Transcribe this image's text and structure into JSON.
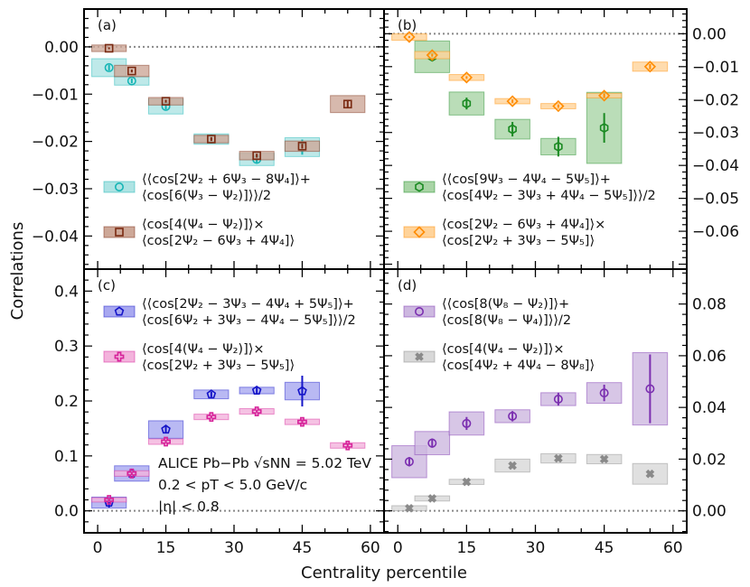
{
  "figure": {
    "xlabel": "Centrality percentile",
    "ylabel": "Correlations",
    "xticks": [
      "0",
      "15",
      "30",
      "45",
      "60"
    ],
    "xtick_values": [
      0,
      15,
      30,
      45,
      60
    ],
    "xlim": [
      -3,
      63
    ]
  },
  "annotation": {
    "line1": "ALICE Pb−Pb √sNN = 5.02 TeV",
    "line2": "0.2 < pT < 5.0 GeV/c",
    "line3": "|η| < 0.8"
  },
  "chart_data": [
    {
      "type": "scatter",
      "panel": "(a)",
      "ylim": [
        -0.047,
        0.008
      ],
      "yticks": [
        0,
        -0.01,
        -0.02,
        -0.03,
        -0.04
      ],
      "ytick_labels": [
        "0.00",
        "−0.01",
        "−0.02",
        "−0.03",
        "−0.04"
      ],
      "ytick_side": "left",
      "zero_line": true,
      "legend": "lower-left",
      "series": [
        {
          "name": "⟨⟨cos[2Ψ2 + 6Ψ3 − 8Ψ4]⟩ + ⟨cos[6(Ψ3 − Ψ2)]⟩⟩/2",
          "legend_lines": [
            "⟨⟨cos[2Ψ₂ + 6Ψ₃ − 8Ψ₄]⟩+",
            "⟨cos[6(Ψ₃ − Ψ₂)]⟩⟩/2"
          ],
          "marker": "circle",
          "color": "#17b5b5",
          "box_color": "#aee3e3",
          "x": [
            2.5,
            7.5,
            15,
            25,
            35,
            45
          ],
          "y": [
            -0.0044,
            -0.0072,
            -0.0126,
            -0.0195,
            -0.0238,
            -0.0212
          ],
          "stat_err": [
            0.0006,
            0.0005,
            0.0006,
            0.0006,
            0.0009,
            0.0016
          ],
          "sys_err": [
            0.0019,
            0.0009,
            0.0016,
            0.0011,
            0.0013,
            0.002
          ]
        },
        {
          "name": "⟨cos[4(Ψ4 − Ψ2)]⟩ × ⟨cos[2Ψ2 − 6Ψ3 + 4Ψ4]⟩",
          "legend_lines": [
            "⟨cos[4(Ψ₄ − Ψ₂)]⟩×",
            "⟨cos[2Ψ₂ − 6Ψ₃ + 4Ψ₄]⟩"
          ],
          "marker": "square",
          "color": "#7a2a12",
          "box_color": "#cda898",
          "x": [
            2.5,
            7.5,
            15,
            25,
            35,
            45,
            55
          ],
          "y": [
            -0.0003,
            -0.0051,
            -0.0115,
            -0.0195,
            -0.023,
            -0.021,
            -0.0121
          ],
          "stat_err": [
            0.0002,
            0.0003,
            0.0003,
            0.0004,
            0.0004,
            0.0005,
            0.0009
          ],
          "sys_err": [
            0.0007,
            0.0012,
            0.0008,
            0.0008,
            0.0009,
            0.0011,
            0.0018
          ]
        }
      ]
    },
    {
      "type": "scatter",
      "panel": "(b)",
      "ylim": [
        -0.0715,
        0.0075
      ],
      "yticks": [
        0,
        -0.01,
        -0.02,
        -0.03,
        -0.04,
        -0.05,
        -0.06
      ],
      "ytick_labels": [
        "0.00",
        "−0.01",
        "−0.02",
        "−0.03",
        "−0.04",
        "−0.05",
        "−0.06"
      ],
      "ytick_side": "right",
      "zero_line": true,
      "legend": "lower-left",
      "series": [
        {
          "name": "⟨⟨cos[9Ψ3 − 4Ψ4 − 5Ψ5]⟩ + ⟨cos[4Ψ2 − 3Ψ3 + 4Ψ4 − 5Ψ5]⟩⟩/2",
          "legend_lines": [
            "⟨⟨cos[9Ψ₃ − 4Ψ₄ − 5Ψ₅]⟩+",
            "⟨cos[4Ψ₂ − 3Ψ₃ + 4Ψ₄ − 5Ψ₅]⟩⟩/2"
          ],
          "marker": "hexagon",
          "color": "#1a8a22",
          "box_color": "#a9d4a6",
          "x": [
            7.5,
            15,
            25,
            35,
            45
          ],
          "y": [
            -0.007,
            -0.0212,
            -0.029,
            -0.0343,
            -0.0286
          ],
          "stat_err": [
            0.001,
            0.0018,
            0.0022,
            0.003,
            0.0045
          ],
          "sys_err": [
            0.0048,
            0.0035,
            0.003,
            0.0025,
            0.0108
          ]
        },
        {
          "name": "⟨cos[2Ψ2 − 6Ψ3 + 4Ψ4]⟩ × ⟨cos[2Ψ2 + 3Ψ3 − 5Ψ5]⟩",
          "legend_lines": [
            "⟨cos[2Ψ₂ − 6Ψ₃ + 4Ψ₄]⟩×",
            "⟨cos[2Ψ₂ + 3Ψ₃ − 5Ψ₅]⟩"
          ],
          "marker": "diamond",
          "color": "#ff8c00",
          "box_color": "#ffd39a",
          "x": [
            2.5,
            7.5,
            15,
            25,
            35,
            45,
            55
          ],
          "y": [
            -0.001,
            -0.0065,
            -0.0133,
            -0.0205,
            -0.022,
            -0.0188,
            -0.01
          ],
          "stat_err": [
            0.0003,
            0.0004,
            0.0004,
            0.0005,
            0.0005,
            0.0006,
            0.0008
          ],
          "sys_err": [
            0.001,
            0.0011,
            0.0009,
            0.0008,
            0.0008,
            0.0007,
            0.0014
          ]
        }
      ]
    },
    {
      "type": "scatter",
      "panel": "(c)",
      "ylim": [
        -0.04,
        0.44
      ],
      "yticks": [
        0,
        0.1,
        0.2,
        0.3,
        0.4
      ],
      "ytick_labels": [
        "0.0",
        "0.1",
        "0.2",
        "0.3",
        "0.4"
      ],
      "ytick_side": "left",
      "zero_line": true,
      "legend": "top-left",
      "series": [
        {
          "name": "⟨⟨cos[2Ψ2 − 3Ψ3 − 4Ψ4 + 5Ψ5]⟩ + ⟨cos[6Ψ2 + 3Ψ3 − 4Ψ4 − 5Ψ5]⟩⟩/2",
          "legend_lines": [
            "⟨⟨cos[2Ψ₂ − 3Ψ₃ − 4Ψ₄ + 5Ψ₅]⟩+",
            "⟨cos[6Ψ₂ + 3Ψ₃ − 4Ψ₄ − 5Ψ₅]⟩⟩/2"
          ],
          "marker": "pentagon",
          "color": "#1515c8",
          "box_color": "#a8a8f0",
          "x": [
            2.5,
            7.5,
            15,
            25,
            35,
            45
          ],
          "y": [
            0.015,
            0.068,
            0.148,
            0.212,
            0.219,
            0.218
          ],
          "stat_err": [
            0.009,
            0.005,
            0.006,
            0.005,
            0.006,
            0.028
          ],
          "sys_err": [
            0.01,
            0.014,
            0.016,
            0.008,
            0.006,
            0.016
          ]
        },
        {
          "name": "⟨cos[4(Ψ4 − Ψ2)]⟩ × ⟨cos[2Ψ2 + 3Ψ3 − 5Ψ5]⟩",
          "legend_lines": [
            "⟨cos[4(Ψ₄ − Ψ₂)]⟩×",
            "⟨cos[2Ψ₂ + 3Ψ₃ − 5Ψ₅]⟩"
          ],
          "marker": "plus",
          "color": "#d6249a",
          "box_color": "#f3b3dc",
          "x": [
            2.5,
            7.5,
            15,
            25,
            35,
            45,
            55
          ],
          "y": [
            0.02,
            0.068,
            0.126,
            0.171,
            0.181,
            0.162,
            0.119
          ],
          "stat_err": [
            0.003,
            0.003,
            0.003,
            0.003,
            0.003,
            0.004,
            0.004
          ],
          "sys_err": [
            0.004,
            0.005,
            0.005,
            0.005,
            0.005,
            0.005,
            0.005
          ]
        }
      ]
    },
    {
      "type": "scatter",
      "panel": "(d)",
      "ylim": [
        -0.0085,
        0.0935
      ],
      "yticks": [
        0,
        0.02,
        0.04,
        0.06,
        0.08
      ],
      "ytick_labels": [
        "0.00",
        "0.02",
        "0.04",
        "0.06",
        "0.08"
      ],
      "ytick_side": "right",
      "zero_line": true,
      "legend": "top-left",
      "series": [
        {
          "name": "⟨⟨cos[8(Ψ8 − Ψ2)]⟩ + ⟨cos[8(Ψ8 − Ψ4)]⟩⟩/2",
          "legend_lines": [
            "⟨⟨cos[8(Ψ₈ − Ψ₂)]⟩+",
            "⟨cos[8(Ψ₈ − Ψ₄)]⟩⟩/2"
          ],
          "marker": "circle",
          "color": "#7b2fb0",
          "box_color": "#cdb8e0",
          "x": [
            2.5,
            7.5,
            15,
            25,
            35,
            45,
            55
          ],
          "y": [
            0.019,
            0.0262,
            0.0338,
            0.0366,
            0.0432,
            0.0456,
            0.0472
          ],
          "stat_err": [
            0.0018,
            0.0018,
            0.0025,
            0.002,
            0.0025,
            0.0032,
            0.0133
          ],
          "sys_err": [
            0.0062,
            0.0045,
            0.0045,
            0.0025,
            0.0025,
            0.004,
            0.014
          ]
        },
        {
          "name": "⟨cos[4(Ψ4 − Ψ2)]⟩ × ⟨cos[4Ψ2 + 4Ψ4 − 8Ψ8]⟩",
          "legend_lines": [
            "⟨cos[4(Ψ₄ − Ψ₂)]⟩×",
            "⟨cos[4Ψ₂ + 4Ψ₄ − 8Ψ₈]⟩"
          ],
          "marker": "cross",
          "color": "#8a8a8a",
          "box_color": "#d8d8d8",
          "x": [
            2.5,
            7.5,
            15,
            25,
            35,
            45,
            55
          ],
          "y": [
            0.001,
            0.0048,
            0.0112,
            0.0175,
            0.0203,
            0.02,
            0.0143
          ],
          "stat_err": [
            0.0004,
            0.0004,
            0.0005,
            0.0006,
            0.0007,
            0.0008,
            0.001
          ],
          "sys_err": [
            0.001,
            0.001,
            0.001,
            0.0025,
            0.0018,
            0.0018,
            0.004
          ]
        }
      ]
    }
  ]
}
